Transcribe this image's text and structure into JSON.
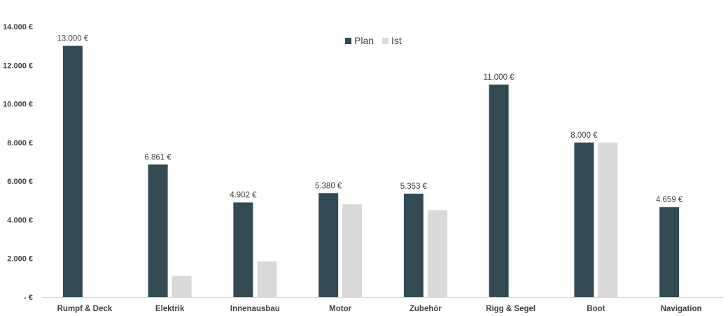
{
  "chart_data": {
    "type": "bar",
    "title": "",
    "xlabel": "",
    "ylabel": "",
    "categories": [
      "Rumpf & Deck",
      "Elektrik",
      "Innenausbau",
      "Motor",
      "Zubehör",
      "Rigg & Segel",
      "Boot",
      "Navigation"
    ],
    "series": [
      {
        "name": "Plan",
        "color": "#314a54",
        "values": [
          13000,
          6861,
          4902,
          5380,
          5353,
          11000,
          8000,
          4659
        ]
      },
      {
        "name": "Ist",
        "color": "#d9d9d9",
        "values": [
          null,
          1100,
          1850,
          4800,
          4500,
          null,
          8000,
          null
        ]
      }
    ],
    "data_labels": [
      "13.000 €",
      "6.861 €",
      "4.902 €",
      "5.380 €",
      "5.353 €",
      "11.000 €",
      "8.000 €",
      "4.659 €"
    ],
    "y_ticks": [
      0,
      2000,
      4000,
      6000,
      8000,
      10000,
      12000,
      14000
    ],
    "y_tick_labels": [
      "-  €",
      "2.000 €",
      "4.000 €",
      "6.000 €",
      "8.000 €",
      "10.000 €",
      "12.000 €",
      "14.000 €"
    ],
    "ylim": [
      0,
      14000
    ],
    "grid": false,
    "legend_position": "top-center"
  }
}
